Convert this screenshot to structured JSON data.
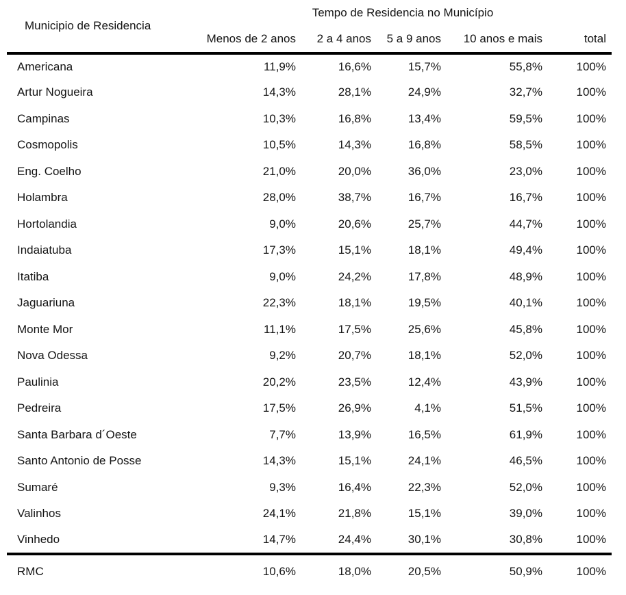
{
  "colors": {
    "background": "#ffffff",
    "text": "#141414",
    "rule": "#000000"
  },
  "table": {
    "row_header_title": "Municipio de Residencia",
    "group_header": "Tempo de Residencia no Município",
    "columns": [
      "Menos de 2 anos",
      "2 a 4 anos",
      "5 a 9 anos",
      "10 anos e mais",
      "total"
    ],
    "rows": [
      {
        "name": "Americana",
        "values": [
          "11,9%",
          "16,6%",
          "15,7%",
          "55,8%",
          "100%"
        ]
      },
      {
        "name": "Artur Nogueira",
        "values": [
          "14,3%",
          "28,1%",
          "24,9%",
          "32,7%",
          "100%"
        ]
      },
      {
        "name": "Campinas",
        "values": [
          "10,3%",
          "16,8%",
          "13,4%",
          "59,5%",
          "100%"
        ]
      },
      {
        "name": "Cosmopolis",
        "values": [
          "10,5%",
          "14,3%",
          "16,8%",
          "58,5%",
          "100%"
        ]
      },
      {
        "name": "Eng. Coelho",
        "values": [
          "21,0%",
          "20,0%",
          "36,0%",
          "23,0%",
          "100%"
        ]
      },
      {
        "name": "Holambra",
        "values": [
          "28,0%",
          "38,7%",
          "16,7%",
          "16,7%",
          "100%"
        ]
      },
      {
        "name": "Hortolandia",
        "values": [
          "9,0%",
          "20,6%",
          "25,7%",
          "44,7%",
          "100%"
        ]
      },
      {
        "name": "Indaiatuba",
        "values": [
          "17,3%",
          "15,1%",
          "18,1%",
          "49,4%",
          "100%"
        ]
      },
      {
        "name": "Itatiba",
        "values": [
          "9,0%",
          "24,2%",
          "17,8%",
          "48,9%",
          "100%"
        ]
      },
      {
        "name": "Jaguariuna",
        "values": [
          "22,3%",
          "18,1%",
          "19,5%",
          "40,1%",
          "100%"
        ]
      },
      {
        "name": "Monte Mor",
        "values": [
          "11,1%",
          "17,5%",
          "25,6%",
          "45,8%",
          "100%"
        ]
      },
      {
        "name": "Nova Odessa",
        "values": [
          "9,2%",
          "20,7%",
          "18,1%",
          "52,0%",
          "100%"
        ]
      },
      {
        "name": "Paulinia",
        "values": [
          "20,2%",
          "23,5%",
          "12,4%",
          "43,9%",
          "100%"
        ]
      },
      {
        "name": "Pedreira",
        "values": [
          "17,5%",
          "26,9%",
          "4,1%",
          "51,5%",
          "100%"
        ]
      },
      {
        "name": "Santa Barbara d´Oeste",
        "values": [
          "7,7%",
          "13,9%",
          "16,5%",
          "61,9%",
          "100%"
        ]
      },
      {
        "name": "Santo Antonio de Posse",
        "values": [
          "14,3%",
          "15,1%",
          "24,1%",
          "46,5%",
          "100%"
        ]
      },
      {
        "name": "Sumaré",
        "values": [
          "9,3%",
          "16,4%",
          "22,3%",
          "52,0%",
          "100%"
        ]
      },
      {
        "name": "Valinhos",
        "values": [
          "24,1%",
          "21,8%",
          "15,1%",
          "39,0%",
          "100%"
        ]
      },
      {
        "name": "Vinhedo",
        "values": [
          "14,7%",
          "24,4%",
          "30,1%",
          "30,8%",
          "100%"
        ]
      }
    ],
    "footer_row": {
      "name": "RMC",
      "values": [
        "10,6%",
        "18,0%",
        "20,5%",
        "50,9%",
        "100%"
      ]
    }
  }
}
